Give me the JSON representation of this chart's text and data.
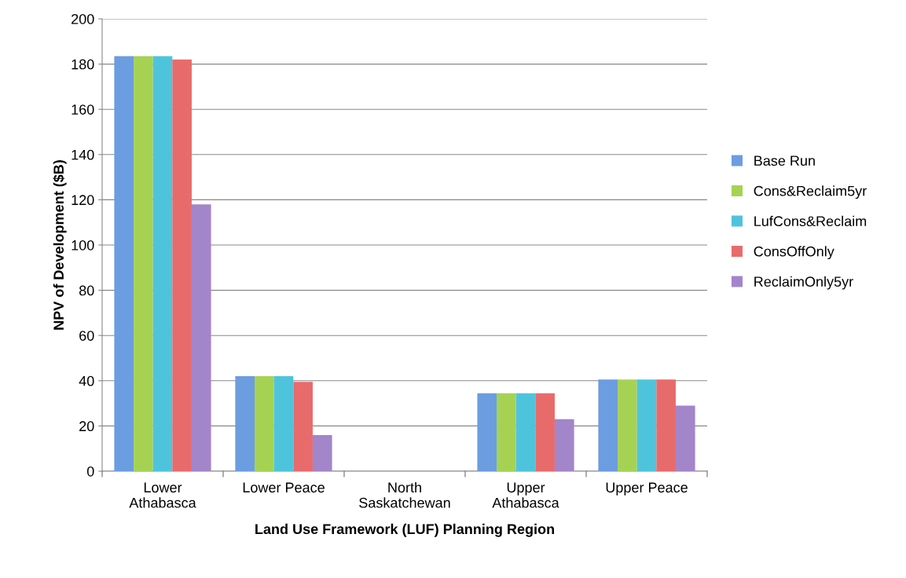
{
  "chart_data": {
    "type": "bar",
    "xlabel": "Land Use Framework (LUF) Planning Region",
    "ylabel": "NPV of Development ($B)",
    "categories": [
      "Lower\nAthabasca",
      "Lower Peace",
      "North\nSaskatchewan",
      "Upper\nAthabasca",
      "Upper Peace"
    ],
    "series": [
      {
        "name": "Base Run",
        "color": "#6b9de0",
        "values": [
          183.5,
          42,
          0,
          34.5,
          40.5
        ]
      },
      {
        "name": "Cons&Reclaim5yr",
        "color": "#a6d254",
        "values": [
          183.5,
          42,
          0,
          34.5,
          40.5
        ]
      },
      {
        "name": "LufCons&Reclaim",
        "color": "#4ec4dc",
        "values": [
          183.5,
          42,
          0,
          34.5,
          40.5
        ]
      },
      {
        "name": "ConsOffOnly",
        "color": "#e86b6b",
        "values": [
          182,
          39.5,
          0,
          34.5,
          40.5
        ]
      },
      {
        "name": "ReclaimOnly5yr",
        "color": "#a385c9",
        "values": [
          118,
          16,
          0,
          23,
          29
        ]
      }
    ],
    "ylim": [
      0,
      200
    ],
    "yticks": [
      0,
      20,
      40,
      60,
      80,
      100,
      120,
      140,
      160,
      180,
      200
    ],
    "grid": "y",
    "legend": "right"
  }
}
